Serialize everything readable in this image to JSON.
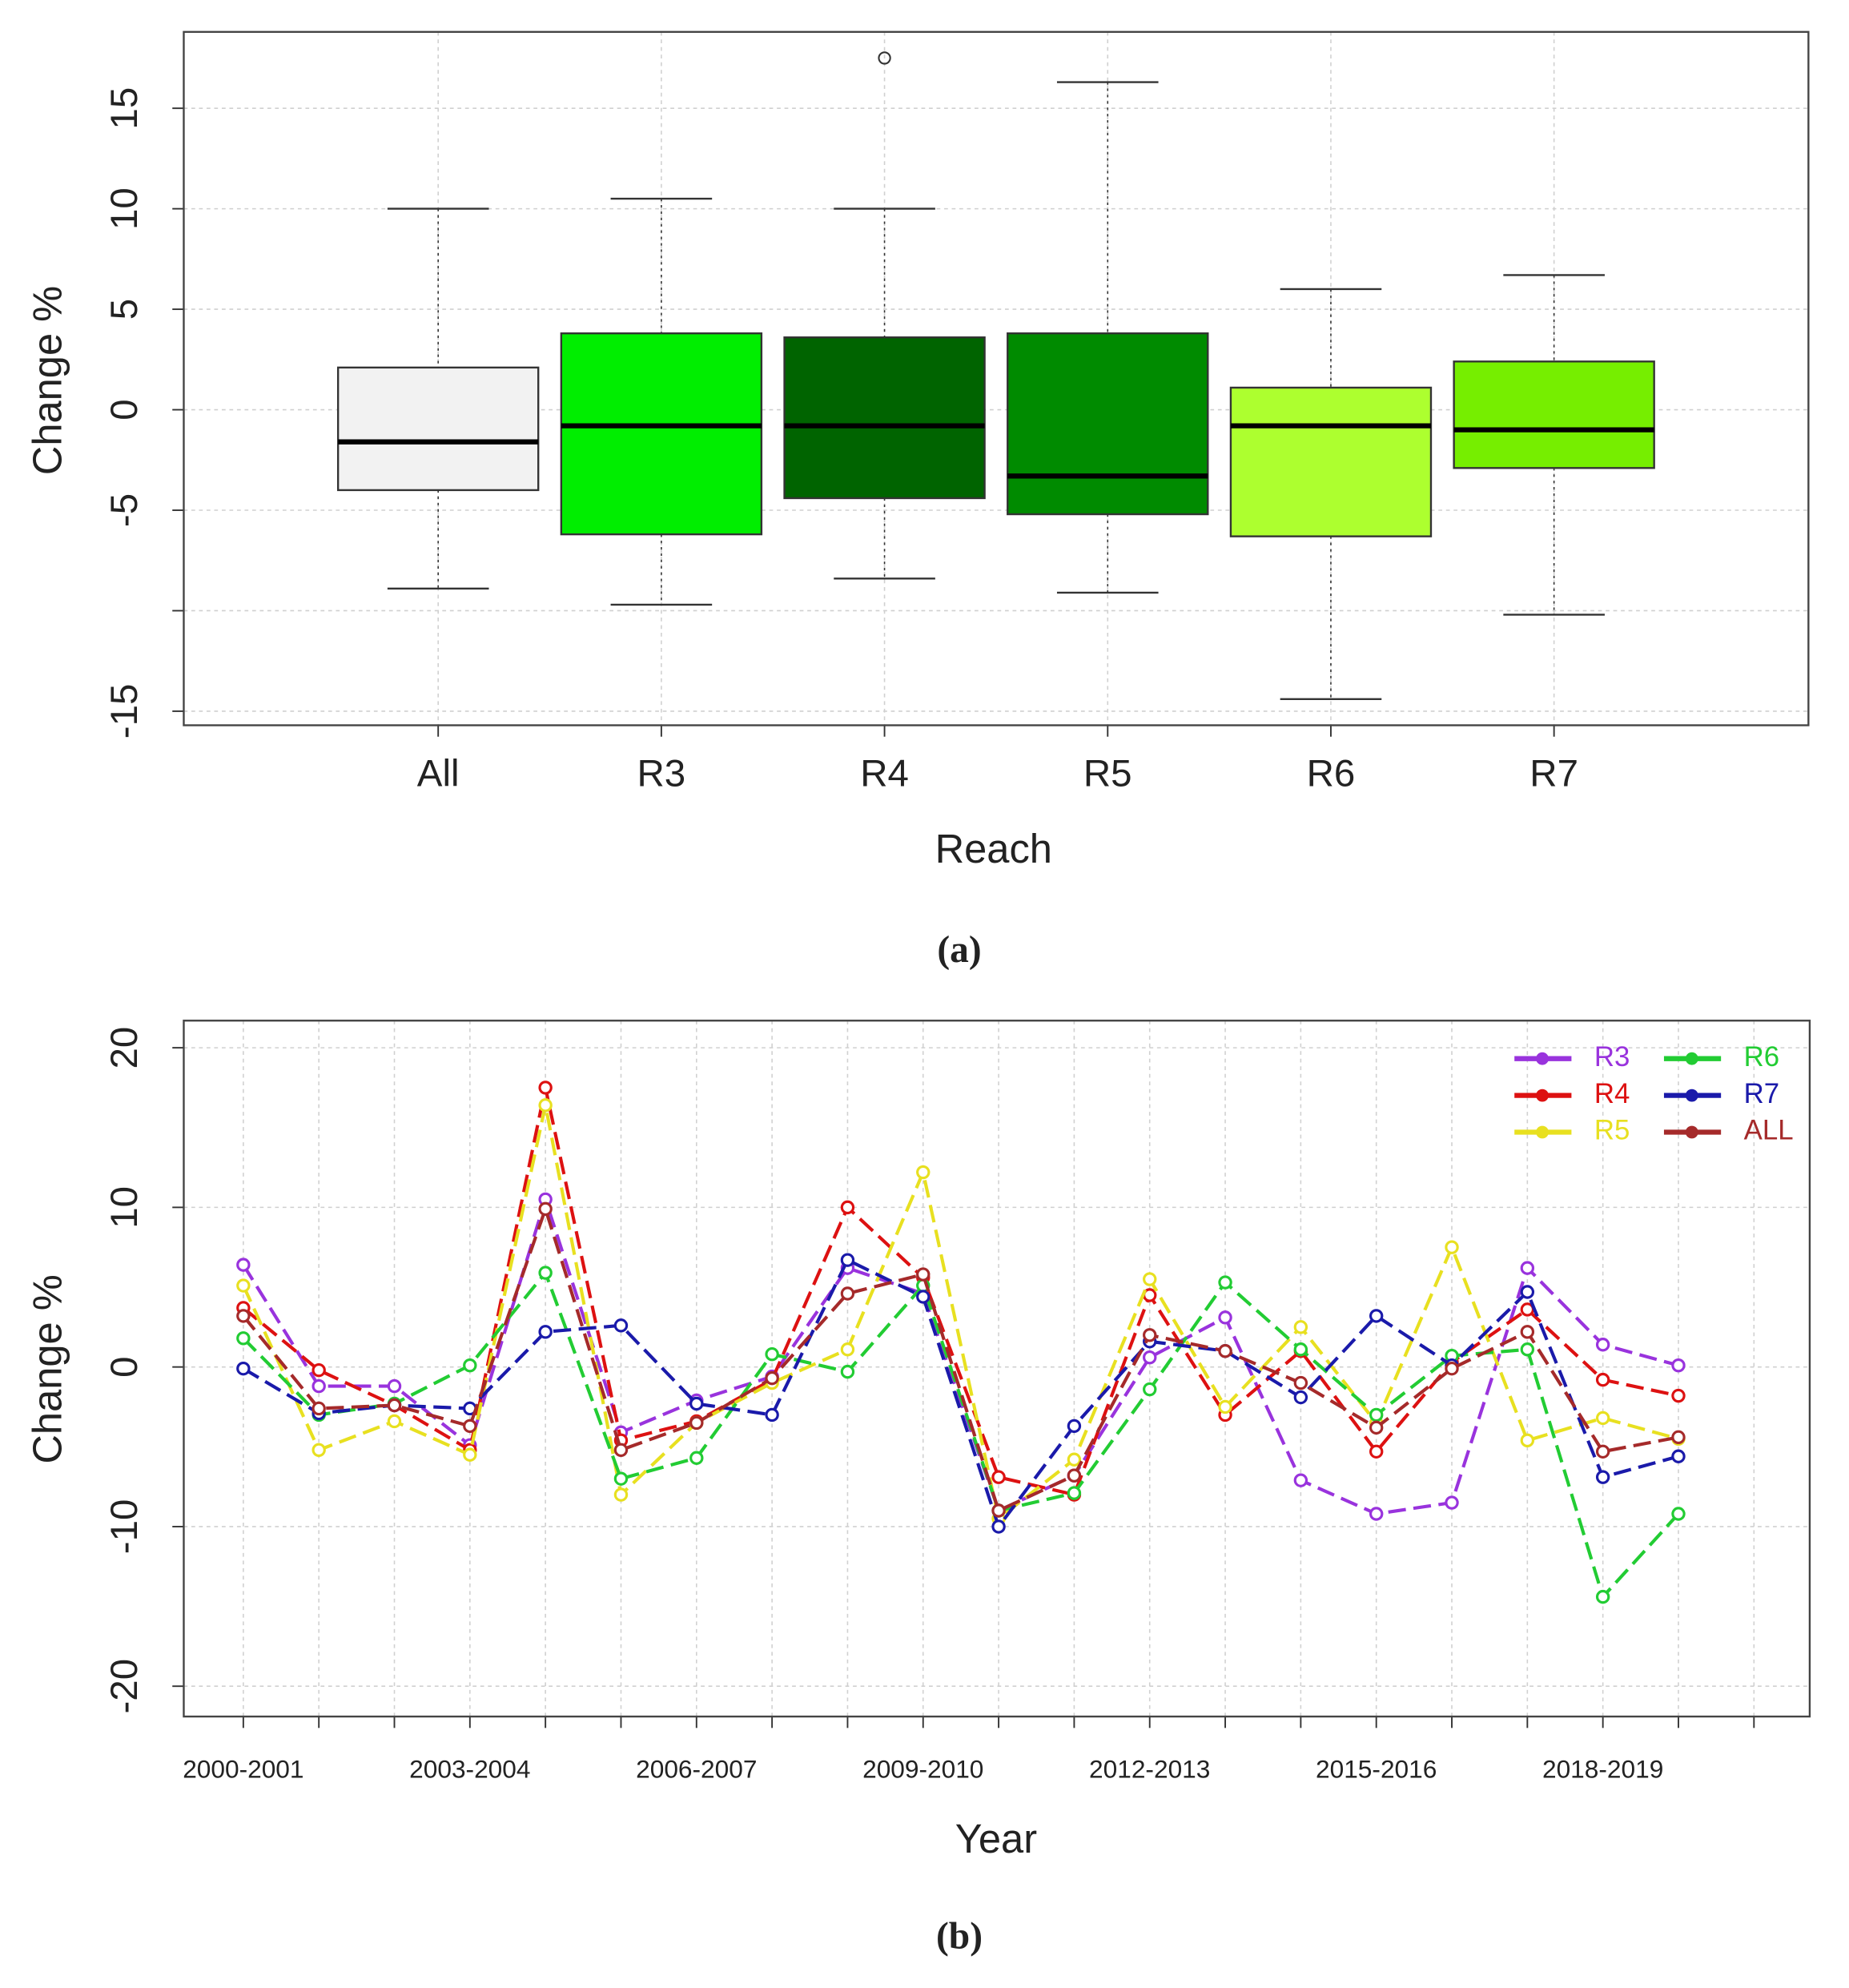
{
  "chart_data": [
    {
      "type": "box",
      "categories": [
        "All",
        "R3",
        "R4",
        "R5",
        "R6",
        "R7"
      ],
      "min": [
        -8.9,
        -9.7,
        -8.4,
        -9.1,
        -14.4,
        -10.2
      ],
      "q1": [
        -4.0,
        -6.2,
        -4.4,
        -5.2,
        -6.3,
        -2.9
      ],
      "median": [
        -1.6,
        -0.8,
        -0.8,
        -3.3,
        -0.8,
        -1.0
      ],
      "q3": [
        2.1,
        3.8,
        3.6,
        3.8,
        1.1,
        2.4
      ],
      "max": [
        10.0,
        10.5,
        10.0,
        16.3,
        6.0,
        6.7
      ],
      "outliers": [
        [],
        [],
        [
          17.5
        ],
        [],
        [],
        []
      ],
      "colors": [
        "#f2f2f2",
        "#00ee00",
        "#006400",
        "#008b00",
        "#adff2f",
        "#76ee00"
      ],
      "ylim": [
        -15.7,
        18.8
      ],
      "yticks": [
        -15,
        {
          "value": -10,
          "label": null
        },
        -5,
        0,
        5,
        10,
        15
      ],
      "grid": true,
      "x_label": "Reach",
      "y_label": "Change %",
      "caption": "(a)"
    },
    {
      "type": "line",
      "categories": [
        "2000-2001",
        null,
        null,
        "2003-2004",
        null,
        null,
        "2006-2007",
        null,
        null,
        "2009-2010",
        null,
        null,
        "2012-2013",
        null,
        null,
        "2015-2016",
        null,
        null,
        "2018-2019",
        null,
        null
      ],
      "series": [
        {
          "name": "R3",
          "color": "#9933dd",
          "values": [
            6.4,
            -1.2,
            -1.2,
            -4.9,
            10.5,
            -4.1,
            -2.1,
            -0.6,
            6.2,
            4.6,
            -9.0,
            -6.8,
            0.6,
            3.1,
            -7.1,
            -9.2,
            -8.5,
            6.2,
            1.4,
            0.1,
            null
          ]
        },
        {
          "name": "R4",
          "color": "#dd1111",
          "values": [
            3.7,
            -0.2,
            -2.4,
            -5.2,
            17.5,
            -4.6,
            -3.4,
            -0.8,
            10.0,
            5.6,
            -6.9,
            -8.0,
            4.5,
            -3.0,
            1.0,
            -5.3,
            0.3,
            3.6,
            -0.8,
            -1.8,
            null
          ]
        },
        {
          "name": "R5",
          "color": "#e8e020",
          "values": [
            5.1,
            -5.2,
            -3.4,
            -5.5,
            16.4,
            -8.0,
            -3.5,
            -1.0,
            1.1,
            12.2,
            -9.5,
            -5.8,
            5.5,
            -2.5,
            2.5,
            -3.5,
            7.5,
            -4.6,
            -3.2,
            -4.5,
            null
          ]
        },
        {
          "name": "R6",
          "color": "#22cc33",
          "values": [
            1.8,
            -3.0,
            -2.3,
            0.1,
            5.9,
            -7.0,
            -5.7,
            0.8,
            -0.3,
            5.1,
            -9.0,
            -7.9,
            -1.4,
            5.3,
            1.1,
            -3.0,
            0.7,
            1.1,
            -14.4,
            -9.2,
            null
          ]
        },
        {
          "name": "R7",
          "color": "#1a1aaa",
          "values": [
            -0.1,
            -2.9,
            -2.4,
            -2.6,
            2.2,
            2.6,
            -2.3,
            -3.0,
            6.7,
            4.4,
            -10.0,
            -3.7,
            1.6,
            1.0,
            -1.9,
            3.2,
            0.1,
            4.7,
            -6.9,
            -5.6,
            null
          ]
        },
        {
          "name": "ALL",
          "color": "#a52a2a",
          "values": [
            3.2,
            -2.6,
            -2.4,
            -3.7,
            9.9,
            -5.2,
            -3.5,
            -0.7,
            4.6,
            5.8,
            -9.0,
            -6.8,
            2.0,
            1.0,
            -1.0,
            -3.8,
            -0.1,
            2.2,
            -5.3,
            -4.4,
            null
          ]
        }
      ],
      "ylim": [
        -21.9,
        21.7
      ],
      "yticks": [
        -20,
        -10,
        0,
        10,
        20
      ],
      "grid": true,
      "legend": "topright",
      "x_label": "Year",
      "y_label": "Change %",
      "caption": "(b)"
    }
  ]
}
